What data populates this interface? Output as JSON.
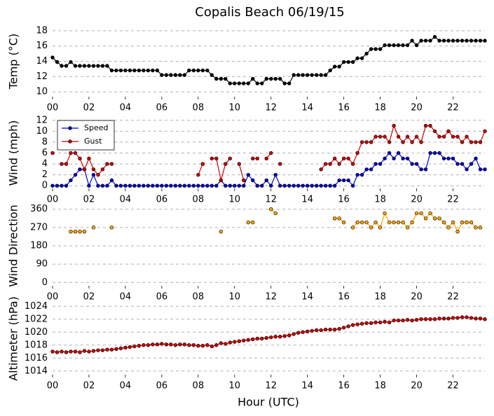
{
  "chart_data": [
    {
      "type": "line",
      "title": "Copalis Beach 06/19/15",
      "ylabel": "Temp (°C)",
      "grid": true,
      "xlim": [
        0,
        23.75
      ],
      "xticks": [
        {
          "value": 0,
          "label": "00"
        },
        {
          "value": 2,
          "label": "02"
        },
        {
          "value": 4,
          "label": "04"
        },
        {
          "value": 6,
          "label": "06"
        },
        {
          "value": 8,
          "label": "08"
        },
        {
          "value": 10,
          "label": "10"
        },
        {
          "value": 12,
          "label": "12"
        },
        {
          "value": 14,
          "label": "14"
        },
        {
          "value": 16,
          "label": "16"
        },
        {
          "value": 18,
          "label": "18"
        },
        {
          "value": 20,
          "label": "20"
        },
        {
          "value": 22,
          "label": "22"
        }
      ],
      "ylim": [
        9,
        19
      ],
      "yticks": [
        10,
        12,
        14,
        16,
        18
      ],
      "x": [
        0,
        0.25,
        0.5,
        0.75,
        1,
        1.25,
        1.5,
        1.75,
        2,
        2.25,
        2.5,
        2.75,
        3,
        3.25,
        3.5,
        3.75,
        4,
        4.25,
        4.5,
        4.75,
        5,
        5.25,
        5.5,
        5.75,
        6,
        6.25,
        6.5,
        6.75,
        7,
        7.25,
        7.5,
        7.75,
        8,
        8.25,
        8.5,
        8.75,
        9,
        9.25,
        9.5,
        9.75,
        10,
        10.25,
        10.5,
        10.75,
        11,
        11.25,
        11.5,
        11.75,
        12,
        12.25,
        12.5,
        12.75,
        13,
        13.25,
        13.5,
        13.75,
        14,
        14.25,
        14.5,
        14.75,
        15,
        15.25,
        15.5,
        15.75,
        16,
        16.25,
        16.5,
        16.75,
        17,
        17.25,
        17.5,
        17.75,
        18,
        18.25,
        18.5,
        18.75,
        19,
        19.25,
        19.5,
        19.75,
        20,
        20.25,
        20.5,
        20.75,
        21,
        21.25,
        21.5,
        21.75,
        22,
        22.25,
        22.5,
        22.75,
        23,
        23.25,
        23.5,
        23.75
      ],
      "color": "#000000",
      "values": [
        14.5,
        13.9,
        13.4,
        13.4,
        13.9,
        13.4,
        13.4,
        13.4,
        13.4,
        13.4,
        13.4,
        13.4,
        13.4,
        12.8,
        12.8,
        12.8,
        12.8,
        12.8,
        12.8,
        12.8,
        12.8,
        12.8,
        12.8,
        12.8,
        12.2,
        12.2,
        12.2,
        12.2,
        12.2,
        12.2,
        12.8,
        12.8,
        12.8,
        12.8,
        12.8,
        12.2,
        11.7,
        11.7,
        11.7,
        11.1,
        11.1,
        11.1,
        11.1,
        11.1,
        11.7,
        11.1,
        11.1,
        11.7,
        11.7,
        11.7,
        11.7,
        11.1,
        11.1,
        12.2,
        12.2,
        12.2,
        12.2,
        12.2,
        12.2,
        12.2,
        12.2,
        12.8,
        13.3,
        13.3,
        13.9,
        13.9,
        13.9,
        14.4,
        14.4,
        15.0,
        15.6,
        15.6,
        15.6,
        16.1,
        16.1,
        16.1,
        16.1,
        16.1,
        16.1,
        16.7,
        16.1,
        16.7,
        16.7,
        16.7,
        17.2,
        16.7,
        16.7,
        16.7,
        16.7,
        16.7,
        16.7,
        16.7,
        16.7,
        16.7,
        16.7,
        16.7
      ]
    },
    {
      "type": "line",
      "ylabel": "Wind (mph)",
      "grid": true,
      "legend": "upper left",
      "xlim": [
        0,
        23.75
      ],
      "xticks": [
        {
          "value": 0,
          "label": "00"
        },
        {
          "value": 2,
          "label": "02"
        },
        {
          "value": 4,
          "label": "04"
        },
        {
          "value": 6,
          "label": "06"
        },
        {
          "value": 8,
          "label": "08"
        },
        {
          "value": 10,
          "label": "10"
        },
        {
          "value": 12,
          "label": "12"
        },
        {
          "value": 14,
          "label": "14"
        },
        {
          "value": 16,
          "label": "16"
        },
        {
          "value": 18,
          "label": "18"
        },
        {
          "value": 20,
          "label": "20"
        },
        {
          "value": 22,
          "label": "22"
        }
      ],
      "ylim": [
        -1,
        13
      ],
      "yticks": [
        0,
        2,
        4,
        6,
        8,
        10,
        12
      ],
      "x": [
        0,
        0.25,
        0.5,
        0.75,
        1,
        1.25,
        1.5,
        1.75,
        2,
        2.25,
        2.5,
        2.75,
        3,
        3.25,
        3.5,
        3.75,
        4,
        4.25,
        4.5,
        4.75,
        5,
        5.25,
        5.5,
        5.75,
        6,
        6.25,
        6.5,
        6.75,
        7,
        7.25,
        7.5,
        7.75,
        8,
        8.25,
        8.5,
        8.75,
        9,
        9.25,
        9.5,
        9.75,
        10,
        10.25,
        10.5,
        10.75,
        11,
        11.25,
        11.5,
        11.75,
        12,
        12.25,
        12.5,
        12.75,
        13,
        13.25,
        13.5,
        13.75,
        14,
        14.25,
        14.5,
        14.75,
        15,
        15.25,
        15.5,
        15.75,
        16,
        16.25,
        16.5,
        16.75,
        17,
        17.25,
        17.5,
        17.75,
        18,
        18.25,
        18.5,
        18.75,
        19,
        19.25,
        19.5,
        19.75,
        20,
        20.25,
        20.5,
        20.75,
        21,
        21.25,
        21.5,
        21.75,
        22,
        22.25,
        22.5,
        22.75,
        23,
        23.25,
        23.5,
        23.75
      ],
      "series": [
        {
          "name": "Speed",
          "color": "#0000cc",
          "values": [
            0,
            0,
            0,
            0,
            1,
            2,
            3,
            3,
            0,
            2,
            0,
            0,
            0,
            1,
            0,
            0,
            0,
            0,
            0,
            0,
            0,
            0,
            0,
            0,
            0,
            0,
            0,
            0,
            0,
            0,
            0,
            0,
            0,
            0,
            0,
            0,
            0,
            1,
            0,
            0,
            0,
            0,
            0,
            2,
            1,
            0,
            0,
            1,
            0,
            2,
            0,
            0,
            0,
            0,
            0,
            0,
            0,
            0,
            0,
            0,
            0,
            0,
            0,
            1,
            1,
            1,
            0,
            2,
            2,
            3,
            3,
            4,
            4,
            5,
            6,
            5,
            6,
            5,
            5,
            4,
            4,
            3,
            3,
            6,
            6,
            6,
            5,
            5,
            5,
            4,
            4,
            3,
            4,
            5,
            3,
            3
          ]
        },
        {
          "name": "Gust",
          "color": "#cc0000",
          "values": [
            6,
            null,
            4,
            4,
            6,
            6,
            5,
            3,
            5,
            3,
            2,
            3,
            4,
            4,
            null,
            null,
            null,
            null,
            null,
            null,
            null,
            null,
            null,
            null,
            null,
            null,
            null,
            null,
            null,
            null,
            null,
            null,
            2,
            4,
            null,
            5,
            5,
            1,
            4,
            5,
            null,
            4,
            1,
            null,
            5,
            5,
            null,
            5,
            6,
            null,
            4,
            null,
            null,
            null,
            null,
            null,
            null,
            null,
            null,
            3,
            4,
            4,
            5,
            4,
            5,
            5,
            4,
            6,
            8,
            8,
            8,
            9,
            9,
            9,
            8,
            11,
            9,
            8,
            9,
            8,
            9,
            8,
            11,
            11,
            10,
            9,
            9,
            10,
            9,
            9,
            8,
            9,
            8,
            8,
            8,
            10
          ]
        }
      ]
    },
    {
      "type": "line",
      "ylabel": "Wind Direction",
      "grid": true,
      "xlim": [
        0,
        23.75
      ],
      "xticks": [
        {
          "value": 0,
          "label": "00"
        },
        {
          "value": 2,
          "label": "02"
        },
        {
          "value": 4,
          "label": "04"
        },
        {
          "value": 6,
          "label": "06"
        },
        {
          "value": 8,
          "label": "08"
        },
        {
          "value": 10,
          "label": "10"
        },
        {
          "value": 12,
          "label": "12"
        },
        {
          "value": 14,
          "label": "14"
        },
        {
          "value": 16,
          "label": "16"
        },
        {
          "value": 18,
          "label": "18"
        },
        {
          "value": 20,
          "label": "20"
        },
        {
          "value": 22,
          "label": "22"
        }
      ],
      "ylim": [
        -30,
        390
      ],
      "yticks": [
        0,
        90,
        180,
        270,
        360
      ],
      "x": [
        0,
        0.25,
        0.5,
        0.75,
        1,
        1.25,
        1.5,
        1.75,
        2,
        2.25,
        2.5,
        2.75,
        3,
        3.25,
        3.5,
        3.75,
        4,
        4.25,
        4.5,
        4.75,
        5,
        5.25,
        5.5,
        5.75,
        6,
        6.25,
        6.5,
        6.75,
        7,
        7.25,
        7.5,
        7.75,
        8,
        8.25,
        8.5,
        8.75,
        9,
        9.25,
        9.5,
        9.75,
        10,
        10.25,
        10.5,
        10.75,
        11,
        11.25,
        11.5,
        11.75,
        12,
        12.25,
        12.5,
        12.75,
        13,
        13.25,
        13.5,
        13.75,
        14,
        14.25,
        14.5,
        14.75,
        15,
        15.25,
        15.5,
        15.75,
        16,
        16.25,
        16.5,
        16.75,
        17,
        17.25,
        17.5,
        17.75,
        18,
        18.25,
        18.5,
        18.75,
        19,
        19.25,
        19.5,
        19.75,
        20,
        20.25,
        20.5,
        20.75,
        21,
        21.25,
        21.5,
        21.75,
        22,
        22.25,
        22.5,
        22.75,
        23,
        23.25,
        23.5,
        23.75
      ],
      "color": "#ffa500",
      "values": [
        null,
        null,
        null,
        null,
        250,
        250,
        250,
        250,
        null,
        270,
        null,
        null,
        null,
        270,
        null,
        null,
        null,
        null,
        null,
        null,
        null,
        null,
        null,
        null,
        null,
        null,
        null,
        null,
        null,
        null,
        null,
        null,
        null,
        null,
        null,
        null,
        null,
        250,
        null,
        null,
        null,
        null,
        null,
        295,
        295,
        null,
        null,
        null,
        360,
        340,
        null,
        null,
        null,
        null,
        null,
        null,
        null,
        null,
        null,
        null,
        null,
        null,
        315,
        315,
        295,
        null,
        270,
        295,
        295,
        295,
        270,
        295,
        270,
        340,
        295,
        295,
        295,
        295,
        270,
        295,
        340,
        340,
        315,
        340,
        315,
        315,
        295,
        270,
        295,
        250,
        295,
        295,
        295,
        270,
        270,
        null
      ]
    },
    {
      "type": "line",
      "ylabel": "Altimeter (hPa)",
      "xlabel": "Hour (UTC)",
      "grid": true,
      "xlim": [
        0,
        23.75
      ],
      "xticks": [
        {
          "value": 0,
          "label": "00"
        },
        {
          "value": 2,
          "label": "02"
        },
        {
          "value": 4,
          "label": "04"
        },
        {
          "value": 6,
          "label": "06"
        },
        {
          "value": 8,
          "label": "08"
        },
        {
          "value": 10,
          "label": "10"
        },
        {
          "value": 12,
          "label": "12"
        },
        {
          "value": 14,
          "label": "14"
        },
        {
          "value": 16,
          "label": "16"
        },
        {
          "value": 18,
          "label": "18"
        },
        {
          "value": 20,
          "label": "20"
        },
        {
          "value": 22,
          "label": "22"
        }
      ],
      "ylim": [
        1013,
        1025
      ],
      "yticks": [
        1014,
        1016,
        1018,
        1020,
        1022,
        1024
      ],
      "x": [
        0,
        0.25,
        0.5,
        0.75,
        1,
        1.25,
        1.5,
        1.75,
        2,
        2.25,
        2.5,
        2.75,
        3,
        3.25,
        3.5,
        3.75,
        4,
        4.25,
        4.5,
        4.75,
        5,
        5.25,
        5.5,
        5.75,
        6,
        6.25,
        6.5,
        6.75,
        7,
        7.25,
        7.5,
        7.75,
        8,
        8.25,
        8.5,
        8.75,
        9,
        9.25,
        9.5,
        9.75,
        10,
        10.25,
        10.5,
        10.75,
        11,
        11.25,
        11.5,
        11.75,
        12,
        12.25,
        12.5,
        12.75,
        13,
        13.25,
        13.5,
        13.75,
        14,
        14.25,
        14.5,
        14.75,
        15,
        15.25,
        15.5,
        15.75,
        16,
        16.25,
        16.5,
        16.75,
        17,
        17.25,
        17.5,
        17.75,
        18,
        18.25,
        18.5,
        18.75,
        19,
        19.25,
        19.5,
        19.75,
        20,
        20.25,
        20.5,
        20.75,
        21,
        21.25,
        21.5,
        21.75,
        22,
        22.25,
        22.5,
        22.75,
        23,
        23.25,
        23.5,
        23.75
      ],
      "color": "#cc0000",
      "values": [
        1017.0,
        1016.9,
        1017.0,
        1016.9,
        1017.0,
        1017.0,
        1016.9,
        1017.1,
        1017.0,
        1017.1,
        1017.2,
        1017.2,
        1017.3,
        1017.3,
        1017.4,
        1017.5,
        1017.6,
        1017.7,
        1017.8,
        1017.9,
        1018.0,
        1018.0,
        1018.1,
        1018.1,
        1018.2,
        1018.1,
        1018.1,
        1018.0,
        1018.1,
        1018.1,
        1018.0,
        1018.0,
        1017.9,
        1017.9,
        1018.0,
        1017.8,
        1018.0,
        1018.3,
        1018.2,
        1018.4,
        1018.5,
        1018.6,
        1018.7,
        1018.8,
        1018.9,
        1019.0,
        1019.0,
        1019.1,
        1019.2,
        1019.3,
        1019.3,
        1019.4,
        1019.5,
        1019.7,
        1019.9,
        1020.0,
        1020.1,
        1020.2,
        1020.3,
        1020.3,
        1020.4,
        1020.4,
        1020.4,
        1020.5,
        1020.7,
        1020.9,
        1021.1,
        1021.2,
        1021.3,
        1021.4,
        1021.4,
        1021.5,
        1021.5,
        1021.6,
        1021.5,
        1021.8,
        1021.8,
        1021.8,
        1021.9,
        1021.8,
        1021.9,
        1022.0,
        1022.0,
        1022.0,
        1022.0,
        1022.1,
        1022.1,
        1022.1,
        1022.2,
        1022.2,
        1022.3,
        1022.3,
        1022.2,
        1022.1,
        1022.1,
        1022.0
      ]
    }
  ]
}
